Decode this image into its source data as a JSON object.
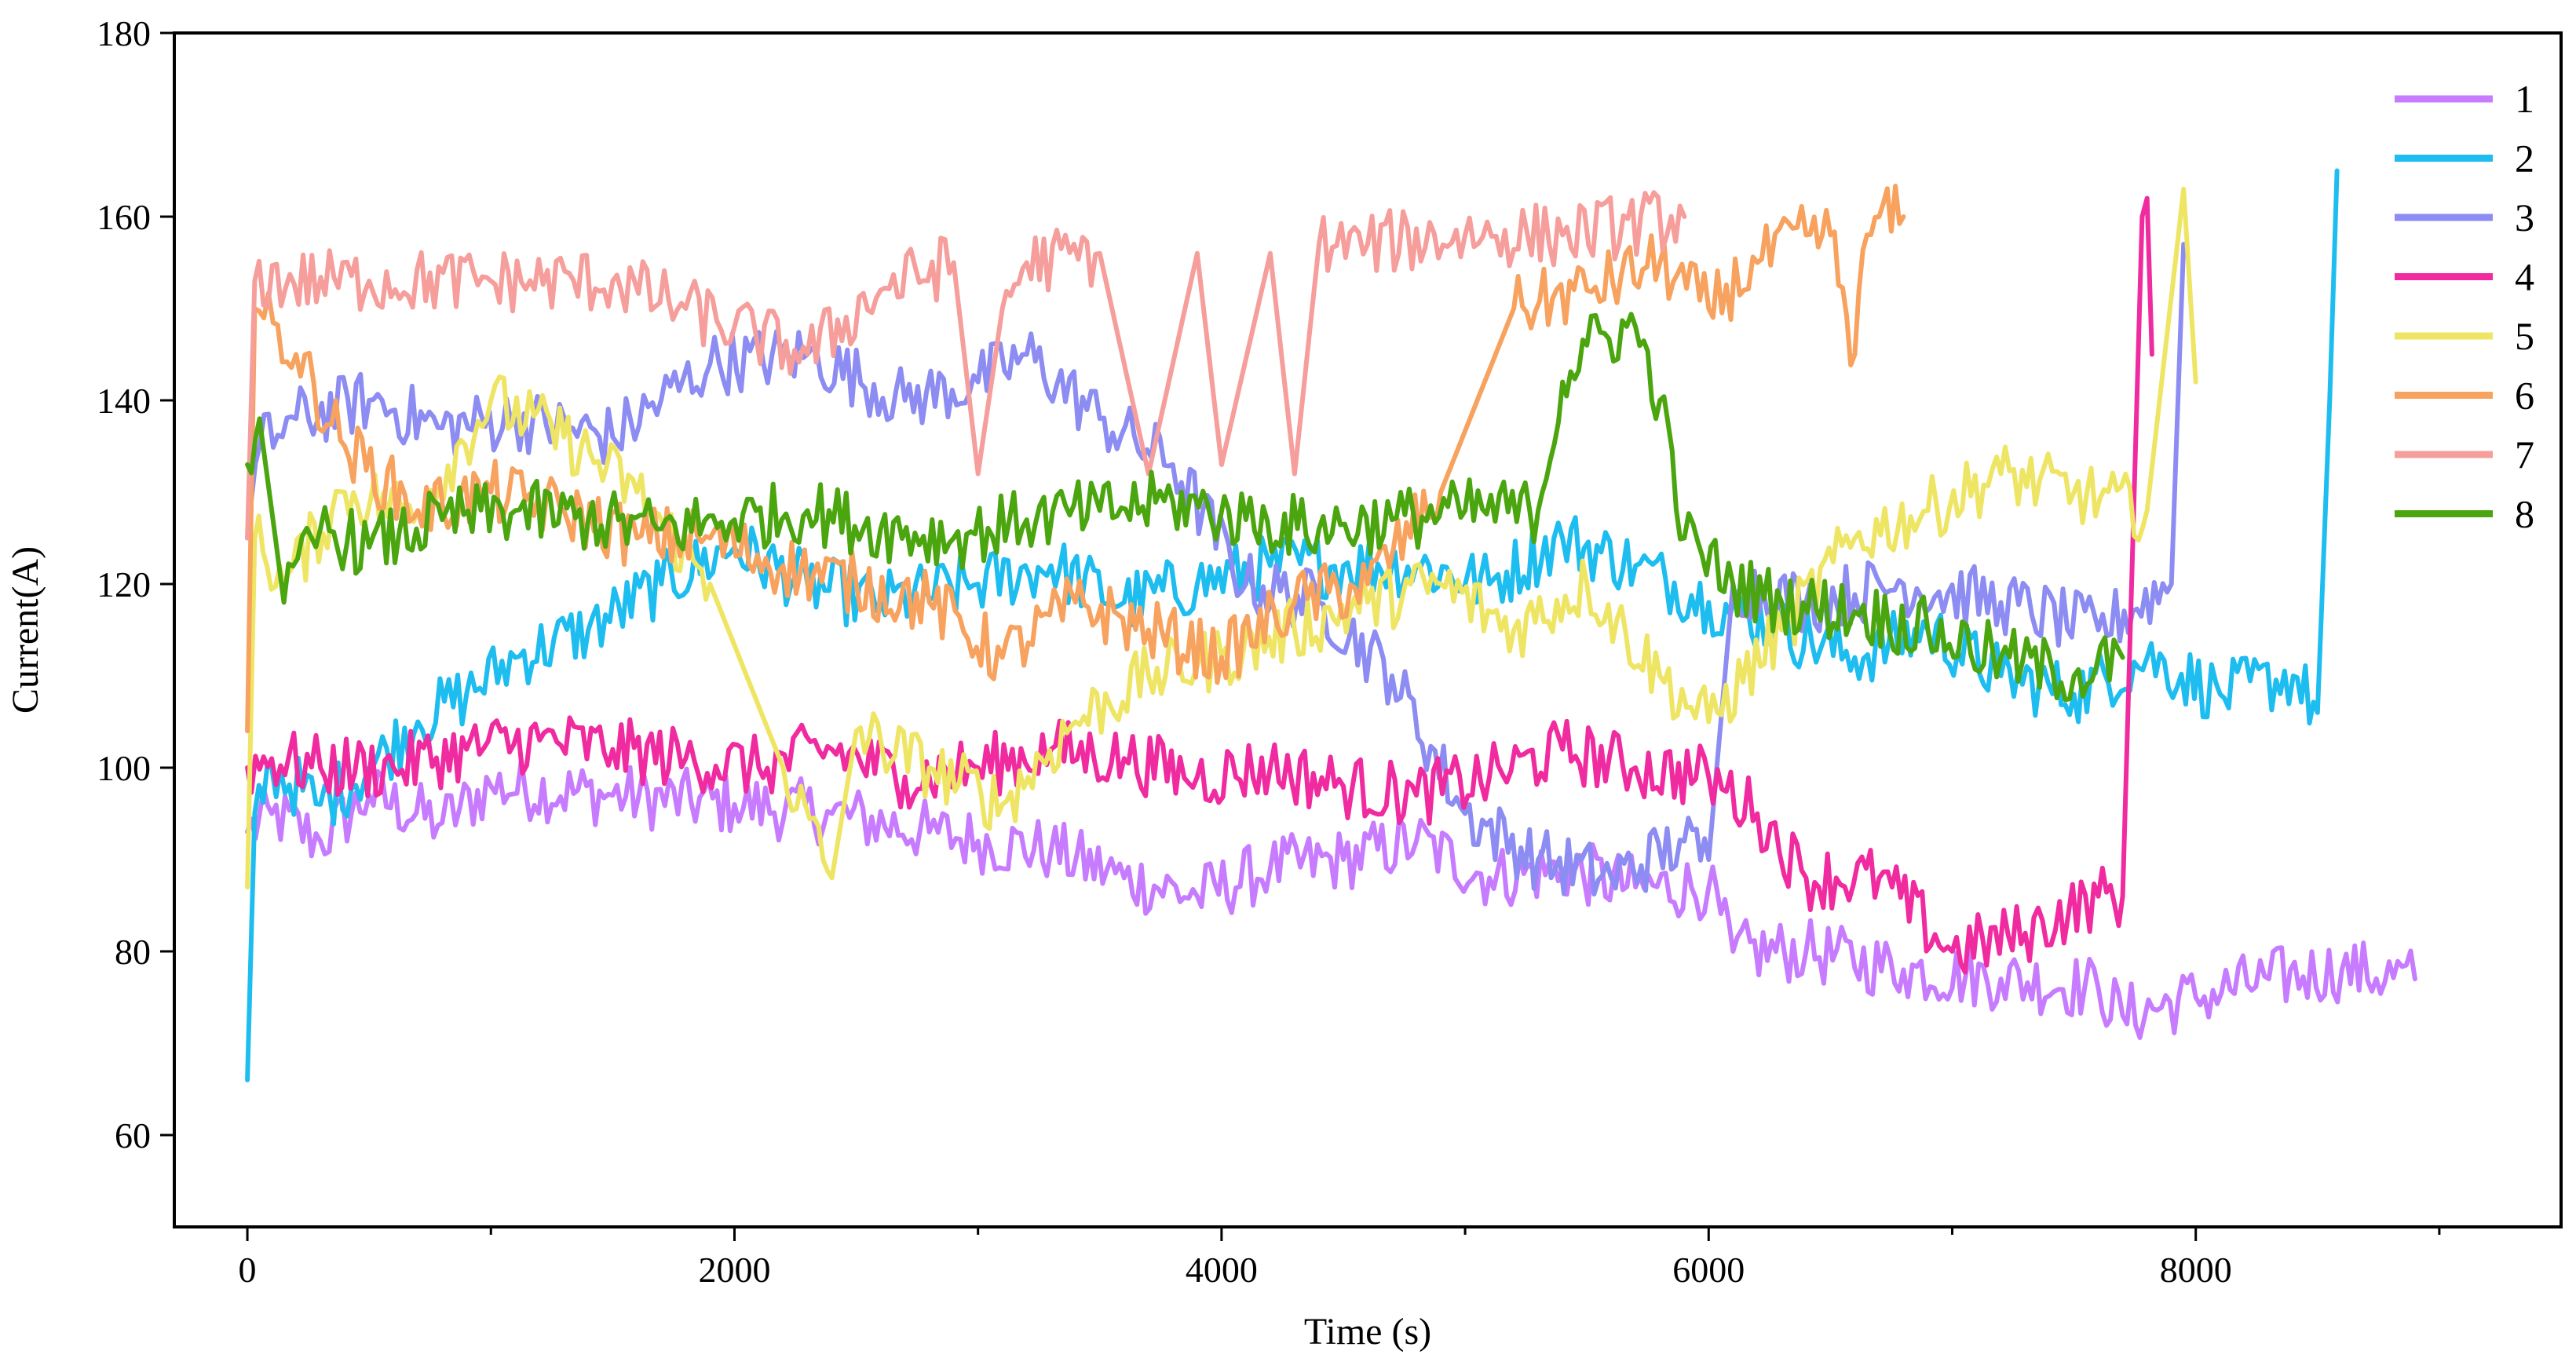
{
  "chart_data": {
    "type": "line",
    "title": "",
    "xlabel": "Time (s)",
    "ylabel": "Current(A)",
    "xlim": [
      -300,
      9500
    ],
    "ylim": [
      50,
      180
    ],
    "xticks": [
      0,
      2000,
      4000,
      6000,
      8000
    ],
    "xtick_labels": [
      "0",
      "2000",
      "4000",
      "6000",
      "8000"
    ],
    "yticks": [
      60,
      80,
      100,
      120,
      140,
      160,
      180
    ],
    "ytick_labels": [
      "60",
      "80",
      "100",
      "120",
      "140",
      "160",
      "180"
    ],
    "grid": false,
    "legend_position": "top-right",
    "series": [
      {
        "name": "1",
        "color": "#C77CFF",
        "x": [
          0,
          100,
          300,
          500,
          800,
          1000,
          1500,
          2000,
          2400,
          2800,
          3000,
          3300,
          3600,
          3900,
          4200,
          4500,
          4800,
          5100,
          5400,
          5700,
          6000,
          6100,
          6400,
          6800,
          7200,
          7600,
          7700,
          8000,
          8300,
          8600,
          8900
        ],
        "y": [
          93,
          95,
          92,
          97,
          94,
          98,
          97,
          96,
          95,
          93,
          92,
          91,
          88,
          86,
          89,
          90,
          92,
          88,
          89,
          87,
          87,
          80,
          80,
          78,
          77,
          76,
          73,
          75,
          77,
          78,
          77
        ]
      },
      {
        "name": "2",
        "color": "#1EBDF0",
        "x": [
          0,
          30,
          100,
          300,
          500,
          700,
          900,
          1100,
          1400,
          1700,
          2000,
          2300,
          2600,
          3000,
          3300,
          3600,
          3900,
          4200,
          4500,
          4800,
          5100,
          5400,
          5700,
          6000,
          6300,
          6600,
          6900,
          7200,
          7500,
          7800,
          8100,
          8400,
          8500,
          8550,
          8580
        ],
        "y": [
          66,
          95,
          100,
          96,
          100,
          105,
          108,
          112,
          115,
          120,
          124,
          120,
          118,
          120,
          122,
          118,
          120,
          122,
          122,
          122,
          120,
          125,
          122,
          118,
          115,
          112,
          115,
          110,
          108,
          112,
          108,
          110,
          106,
          140,
          165
        ]
      },
      {
        "name": "3",
        "color": "#8C8CF2",
        "x": [
          0,
          50,
          200,
          500,
          800,
          1100,
          1500,
          1900,
          2300,
          2700,
          3000,
          3200,
          3500,
          3800,
          4100,
          4400,
          4700,
          5000,
          5300,
          5600,
          5900,
          6000,
          6100,
          6400,
          6800,
          7200,
          7600,
          7900,
          7950
        ],
        "y": [
          125,
          135,
          138,
          140,
          137,
          138,
          136,
          144,
          145,
          140,
          142,
          145,
          138,
          133,
          120,
          118,
          110,
          95,
          90,
          88,
          92,
          90,
          120,
          118,
          120,
          118,
          115,
          120,
          157
        ]
      },
      {
        "name": "4",
        "color": "#F02BA0",
        "x": [
          0,
          100,
          300,
          600,
          900,
          1200,
          1500,
          1800,
          2100,
          2400,
          2700,
          3000,
          3300,
          3600,
          3900,
          4200,
          4500,
          4800,
          5100,
          5400,
          5700,
          6000,
          6200,
          6400,
          6700,
          7000,
          7300,
          7600,
          7700,
          7780,
          7800,
          7820
        ],
        "y": [
          100,
          101,
          100,
          100,
          102,
          103,
          102,
          101,
          100,
          102,
          99,
          100,
          102,
          101,
          99,
          100,
          98,
          97,
          99,
          102,
          100,
          99,
          95,
          88,
          88,
          80,
          82,
          86,
          86,
          160,
          162,
          145
        ]
      },
      {
        "name": "5",
        "color": "#EFE564",
        "x": [
          0,
          30,
          150,
          400,
          700,
          1000,
          1300,
          1600,
          1900,
          2200,
          2400,
          2500,
          2800,
          3100,
          3400,
          3700,
          4000,
          4300,
          4600,
          4900,
          5200,
          5500,
          5800,
          6000,
          6300,
          6600,
          6900,
          7200,
          7500,
          7800,
          7950,
          8000
        ],
        "y": [
          87,
          125,
          120,
          130,
          128,
          140,
          136,
          130,
          120,
          100,
          88,
          104,
          100,
          96,
          105,
          110,
          112,
          115,
          118,
          120,
          115,
          120,
          110,
          105,
          115,
          125,
          128,
          132,
          130,
          128,
          163,
          142
        ]
      },
      {
        "name": "6",
        "color": "#F7A25E",
        "x": [
          0,
          30,
          200,
          400,
          700,
          1000,
          1300,
          1600,
          1900,
          2200,
          2500,
          2800,
          3100,
          3400,
          3700,
          4000,
          4300,
          4600,
          4900,
          5200,
          5500,
          5800,
          6000,
          6200,
          6400,
          6500,
          6600,
          6650,
          6700,
          6800
        ],
        "y": [
          104,
          150,
          145,
          135,
          128,
          130,
          128,
          125,
          125,
          122,
          120,
          118,
          112,
          118,
          115,
          112,
          118,
          120,
          130,
          150,
          152,
          155,
          150,
          155,
          158,
          158,
          145,
          158,
          160,
          160
        ]
      },
      {
        "name": "7",
        "color": "#F59E9B",
        "x": [
          0,
          30,
          500,
          1000,
          1500,
          1800,
          2000,
          2300,
          2600,
          2900,
          3000,
          3100,
          3200,
          3500,
          3700,
          3900,
          4000,
          4200,
          4300,
          4400,
          4600,
          5000,
          5400,
          5900
        ],
        "y": [
          125,
          153,
          153,
          153,
          153,
          150,
          148,
          145,
          152,
          155,
          132,
          150,
          155,
          156,
          132,
          156,
          133,
          156,
          132,
          157,
          157,
          158,
          158,
          160
        ]
      },
      {
        "name": "8",
        "color": "#4AA50F",
        "x": [
          0,
          50,
          150,
          300,
          500,
          800,
          1100,
          1400,
          1700,
          2000,
          2300,
          2600,
          2900,
          3200,
          3500,
          3800,
          4100,
          4400,
          4700,
          5000,
          5300,
          5400,
          5500,
          5700,
          5800,
          5900,
          6100,
          6300,
          6600,
          6900,
          7200,
          7500,
          7700
        ],
        "y": [
          133,
          138,
          118,
          126,
          124,
          127,
          128,
          127,
          126,
          127,
          128,
          126,
          125,
          127,
          128,
          129,
          127,
          126,
          127,
          128,
          128,
          142,
          146,
          148,
          140,
          125,
          120,
          118,
          117,
          115,
          112,
          110,
          112
        ]
      }
    ]
  }
}
